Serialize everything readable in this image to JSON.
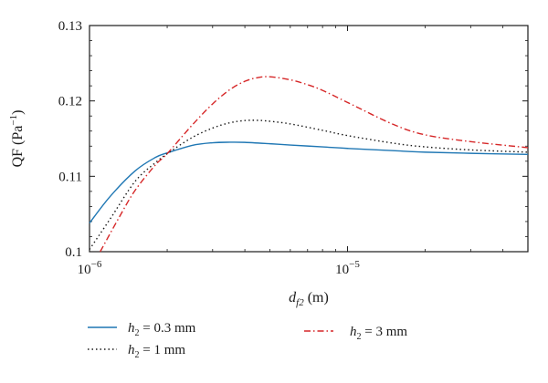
{
  "chart_data": {
    "type": "line",
    "xscale": "log",
    "xlim": [
      1e-06,
      5e-05
    ],
    "ylim": [
      0.1,
      0.13
    ],
    "grid": false,
    "x_ticks": [
      {
        "value": 1e-06,
        "base": "10",
        "exp": "−6"
      },
      {
        "value": 1e-05,
        "base": "10",
        "exp": "−5"
      }
    ],
    "y_ticks": [
      {
        "value": 0.1,
        "label": "0.1"
      },
      {
        "value": 0.11,
        "label": "0.11"
      },
      {
        "value": 0.12,
        "label": "0.12"
      },
      {
        "value": 0.13,
        "label": "0.13"
      }
    ],
    "xlabel": {
      "main": "d",
      "sub": "f2",
      "unit": " (m)"
    },
    "ylabel": {
      "main": "QF (Pa",
      "sup": "−1",
      "close": ")"
    },
    "legend_position": "bottom",
    "series": [
      {
        "name": "h2 = 0.3 mm",
        "legend": {
          "main": "h",
          "sub": "2",
          "rest": " = 0.3 mm"
        },
        "color": "#1f77b4",
        "style": "solid",
        "x": [
          1e-06,
          1.2e-06,
          1.5e-06,
          1.8e-06,
          2e-06,
          2.5e-06,
          3e-06,
          3.5e-06,
          4e-06,
          5e-06,
          6e-06,
          8e-06,
          1e-05,
          1.5e-05,
          2e-05,
          3e-05,
          5e-05
        ],
        "y": [
          0.1038,
          0.1073,
          0.1107,
          0.1125,
          0.1131,
          0.1141,
          0.11445,
          0.11452,
          0.1145,
          0.11432,
          0.11415,
          0.1139,
          0.1137,
          0.1134,
          0.1132,
          0.11305,
          0.1129
        ]
      },
      {
        "name": "h2 = 1 mm",
        "legend": {
          "main": "h",
          "sub": "2",
          "rest": " = 1 mm"
        },
        "color": "#1a1a1a",
        "style": "dotted",
        "x": [
          1e-06,
          1.2e-06,
          1.5e-06,
          1.8e-06,
          2e-06,
          2.5e-06,
          3e-06,
          3.5e-06,
          4e-06,
          4.5e-06,
          5e-06,
          6e-06,
          8e-06,
          1e-05,
          1.5e-05,
          2e-05,
          3e-05,
          5e-05
        ],
        "y": [
          0.1003,
          0.1043,
          0.1093,
          0.1118,
          0.113,
          0.11515,
          0.1164,
          0.1171,
          0.1174,
          0.11742,
          0.1173,
          0.11695,
          0.1161,
          0.1154,
          0.1144,
          0.1139,
          0.1135,
          0.1132
        ]
      },
      {
        "name": "h2 = 3 mm",
        "legend": {
          "main": "h",
          "sub": "2",
          "rest": " = 3 mm"
        },
        "color": "#d62728",
        "style": "dashdot",
        "x": [
          1.1e-06,
          1.3e-06,
          1.5e-06,
          1.8e-06,
          2e-06,
          2.5e-06,
          3e-06,
          3.5e-06,
          4e-06,
          4.5e-06,
          5e-06,
          6e-06,
          7e-06,
          8e-06,
          1e-05,
          1.5e-05,
          2e-05,
          3e-05,
          5e-05
        ],
        "y": [
          0.1,
          0.1045,
          0.1081,
          0.1115,
          0.113,
          0.1168,
          0.1196,
          0.1215,
          0.1226,
          0.1231,
          0.1232,
          0.1228,
          0.12215,
          0.1214,
          0.1198,
          0.1169,
          0.1155,
          0.1146,
          0.1138
        ]
      }
    ]
  }
}
